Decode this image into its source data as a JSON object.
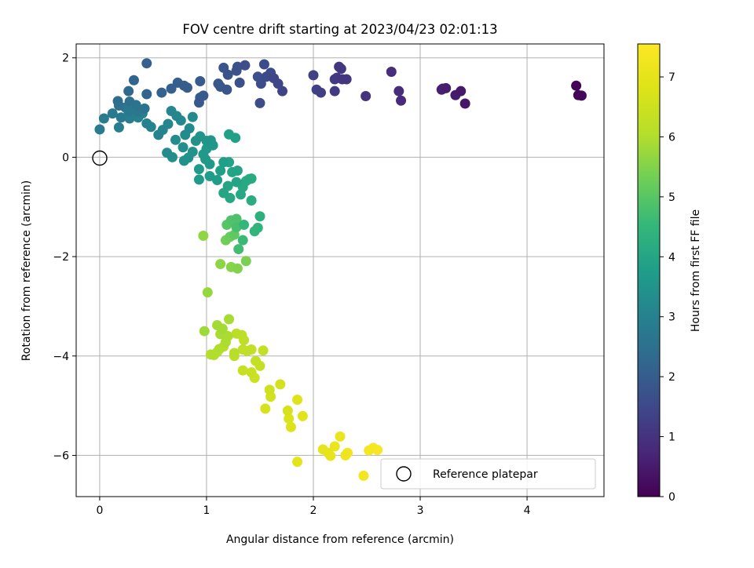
{
  "chart_data": {
    "type": "scatter",
    "title": "FOV centre drift starting at 2023/04/23 02:01:13",
    "xlabel": "Angular distance from reference (arcmin)",
    "ylabel": "Rotation from reference (arcmin)",
    "xlim": [
      -0.22,
      4.72
    ],
    "ylim": [
      -6.83,
      2.28
    ],
    "xticks": [
      0,
      1,
      2,
      3,
      4
    ],
    "yticks": [
      -6,
      -4,
      -2,
      0,
      2
    ],
    "grid": true,
    "legend": {
      "position": "lower right",
      "entries": [
        "Reference platepar"
      ]
    },
    "reference_point": {
      "x": 0,
      "y": 0,
      "label": "Reference platepar"
    },
    "colorbar": {
      "label": "Hours from first FF file",
      "colormap": "viridis",
      "range": [
        0,
        7.55
      ],
      "ticks": [
        0,
        1,
        2,
        3,
        4,
        5,
        6,
        7
      ]
    },
    "points": [
      {
        "x": 4.46,
        "y": 1.44,
        "t": 0.05
      },
      {
        "x": 4.48,
        "y": 1.25,
        "t": 0.1
      },
      {
        "x": 4.51,
        "y": 1.24,
        "t": 0.15
      },
      {
        "x": 3.42,
        "y": 1.08,
        "t": 0.4
      },
      {
        "x": 3.38,
        "y": 1.33,
        "t": 0.45
      },
      {
        "x": 3.33,
        "y": 1.25,
        "t": 0.5
      },
      {
        "x": 3.24,
        "y": 1.39,
        "t": 0.55
      },
      {
        "x": 3.2,
        "y": 1.36,
        "t": 0.6
      },
      {
        "x": 3.21,
        "y": 1.38,
        "t": 0.6
      },
      {
        "x": 2.82,
        "y": 1.14,
        "t": 0.8
      },
      {
        "x": 2.8,
        "y": 1.33,
        "t": 0.85
      },
      {
        "x": 2.73,
        "y": 1.72,
        "t": 0.9
      },
      {
        "x": 2.49,
        "y": 1.23,
        "t": 1.0
      },
      {
        "x": 2.31,
        "y": 1.57,
        "t": 1.05
      },
      {
        "x": 2.27,
        "y": 1.57,
        "t": 1.1
      },
      {
        "x": 2.24,
        "y": 1.82,
        "t": 1.1
      },
      {
        "x": 2.26,
        "y": 1.78,
        "t": 1.15
      },
      {
        "x": 2.22,
        "y": 1.6,
        "t": 1.15
      },
      {
        "x": 2.2,
        "y": 1.57,
        "t": 1.2
      },
      {
        "x": 2.2,
        "y": 1.33,
        "t": 1.2
      },
      {
        "x": 2.07,
        "y": 1.3,
        "t": 1.25
      },
      {
        "x": 2.03,
        "y": 1.36,
        "t": 1.3
      },
      {
        "x": 2.0,
        "y": 1.65,
        "t": 1.3
      },
      {
        "x": 1.71,
        "y": 1.33,
        "t": 1.4
      },
      {
        "x": 1.67,
        "y": 1.48,
        "t": 1.45
      },
      {
        "x": 1.63,
        "y": 1.59,
        "t": 1.45
      },
      {
        "x": 1.6,
        "y": 1.7,
        "t": 1.5
      },
      {
        "x": 1.56,
        "y": 1.62,
        "t": 1.55
      },
      {
        "x": 1.54,
        "y": 1.87,
        "t": 1.55
      },
      {
        "x": 1.51,
        "y": 1.48,
        "t": 1.6
      },
      {
        "x": 1.5,
        "y": 1.09,
        "t": 1.6
      },
      {
        "x": 1.48,
        "y": 1.62,
        "t": 1.65
      },
      {
        "x": 1.36,
        "y": 1.85,
        "t": 1.65
      },
      {
        "x": 1.31,
        "y": 1.5,
        "t": 1.7
      },
      {
        "x": 1.29,
        "y": 1.82,
        "t": 1.7
      },
      {
        "x": 1.28,
        "y": 1.74,
        "t": 1.75
      },
      {
        "x": 1.2,
        "y": 1.66,
        "t": 1.75
      },
      {
        "x": 1.19,
        "y": 1.36,
        "t": 1.8
      },
      {
        "x": 1.16,
        "y": 1.8,
        "t": 1.8
      },
      {
        "x": 1.11,
        "y": 1.48,
        "t": 1.85
      },
      {
        "x": 1.13,
        "y": 1.42,
        "t": 1.85
      },
      {
        "x": 0.97,
        "y": 1.24,
        "t": 1.9
      },
      {
        "x": 0.93,
        "y": 1.1,
        "t": 1.9
      },
      {
        "x": 0.94,
        "y": 1.2,
        "t": 1.95
      },
      {
        "x": 0.94,
        "y": 1.53,
        "t": 1.95
      },
      {
        "x": 0.82,
        "y": 1.4,
        "t": 2.0
      },
      {
        "x": 0.79,
        "y": 1.44,
        "t": 2.0
      },
      {
        "x": 0.73,
        "y": 1.5,
        "t": 2.05
      },
      {
        "x": 0.67,
        "y": 1.38,
        "t": 2.05
      },
      {
        "x": 0.58,
        "y": 1.3,
        "t": 2.1
      },
      {
        "x": 0.44,
        "y": 1.89,
        "t": 2.1
      },
      {
        "x": 0.44,
        "y": 1.27,
        "t": 2.2
      },
      {
        "x": 0.32,
        "y": 1.55,
        "t": 2.2
      },
      {
        "x": 0.27,
        "y": 1.33,
        "t": 2.3
      },
      {
        "x": 0.17,
        "y": 1.13,
        "t": 2.4
      },
      {
        "x": 0.18,
        "y": 1.04,
        "t": 2.5
      },
      {
        "x": 0.28,
        "y": 1.12,
        "t": 2.5
      },
      {
        "x": 0.34,
        "y": 1.05,
        "t": 2.6
      },
      {
        "x": 0.42,
        "y": 0.98,
        "t": 2.6
      },
      {
        "x": 0.36,
        "y": 0.92,
        "t": 2.7
      },
      {
        "x": 0.27,
        "y": 0.93,
        "t": 2.7
      },
      {
        "x": 0.24,
        "y": 1.0,
        "t": 2.75
      },
      {
        "x": 0.2,
        "y": 0.8,
        "t": 2.8
      },
      {
        "x": 0.12,
        "y": 0.88,
        "t": 2.8
      },
      {
        "x": 0.04,
        "y": 0.78,
        "t": 2.85
      },
      {
        "x": 0.0,
        "y": 0.56,
        "t": 2.85
      },
      {
        "x": 0.18,
        "y": 0.6,
        "t": 2.9
      },
      {
        "x": 0.28,
        "y": 0.78,
        "t": 2.9
      },
      {
        "x": 0.32,
        "y": 0.85,
        "t": 2.95
      },
      {
        "x": 0.36,
        "y": 0.8,
        "t": 2.95
      },
      {
        "x": 0.4,
        "y": 0.88,
        "t": 3.0
      },
      {
        "x": 0.44,
        "y": 0.68,
        "t": 3.0
      },
      {
        "x": 0.48,
        "y": 0.61,
        "t": 3.05
      },
      {
        "x": 0.55,
        "y": 0.45,
        "t": 3.05
      },
      {
        "x": 0.59,
        "y": 0.55,
        "t": 3.1
      },
      {
        "x": 0.64,
        "y": 0.67,
        "t": 3.1
      },
      {
        "x": 0.67,
        "y": 0.93,
        "t": 3.15
      },
      {
        "x": 0.72,
        "y": 0.83,
        "t": 3.15
      },
      {
        "x": 0.76,
        "y": 0.74,
        "t": 3.2
      },
      {
        "x": 0.84,
        "y": 0.58,
        "t": 3.2
      },
      {
        "x": 0.87,
        "y": 0.81,
        "t": 3.25
      },
      {
        "x": 0.8,
        "y": 0.45,
        "t": 3.25
      },
      {
        "x": 0.71,
        "y": 0.35,
        "t": 3.3
      },
      {
        "x": 0.63,
        "y": 0.09,
        "t": 3.3
      },
      {
        "x": 0.68,
        "y": 0.0,
        "t": 3.35
      },
      {
        "x": 0.78,
        "y": 0.2,
        "t": 3.35
      },
      {
        "x": 0.79,
        "y": -0.07,
        "t": 3.4
      },
      {
        "x": 0.83,
        "y": -0.01,
        "t": 3.4
      },
      {
        "x": 0.87,
        "y": 0.11,
        "t": 3.45
      },
      {
        "x": 0.9,
        "y": 0.33,
        "t": 3.45
      },
      {
        "x": 0.94,
        "y": 0.42,
        "t": 3.5
      },
      {
        "x": 1.0,
        "y": 0.33,
        "t": 3.5
      },
      {
        "x": 1.04,
        "y": 0.34,
        "t": 3.55
      },
      {
        "x": 1.06,
        "y": 0.24,
        "t": 3.55
      },
      {
        "x": 1.0,
        "y": 0.17,
        "t": 3.6
      },
      {
        "x": 0.97,
        "y": 0.06,
        "t": 3.6
      },
      {
        "x": 0.99,
        "y": -0.04,
        "t": 3.65
      },
      {
        "x": 1.03,
        "y": -0.14,
        "t": 3.65
      },
      {
        "x": 0.93,
        "y": -0.24,
        "t": 3.7
      },
      {
        "x": 0.93,
        "y": -0.45,
        "t": 3.7
      },
      {
        "x": 1.03,
        "y": -0.38,
        "t": 3.75
      },
      {
        "x": 1.1,
        "y": -0.46,
        "t": 3.75
      },
      {
        "x": 1.13,
        "y": -0.27,
        "t": 3.8
      },
      {
        "x": 1.16,
        "y": -0.1,
        "t": 3.8
      },
      {
        "x": 1.21,
        "y": 0.46,
        "t": 3.85
      },
      {
        "x": 1.27,
        "y": 0.39,
        "t": 3.85
      },
      {
        "x": 1.21,
        "y": -0.1,
        "t": 3.9
      },
      {
        "x": 1.24,
        "y": -0.3,
        "t": 3.9
      },
      {
        "x": 1.29,
        "y": -0.27,
        "t": 3.95
      },
      {
        "x": 1.28,
        "y": -0.5,
        "t": 3.95
      },
      {
        "x": 1.2,
        "y": -0.58,
        "t": 4.0
      },
      {
        "x": 1.16,
        "y": -0.72,
        "t": 4.0
      },
      {
        "x": 1.22,
        "y": -0.82,
        "t": 4.05
      },
      {
        "x": 1.32,
        "y": -0.75,
        "t": 4.05
      },
      {
        "x": 1.34,
        "y": -0.6,
        "t": 4.1
      },
      {
        "x": 1.37,
        "y": -0.48,
        "t": 4.1
      },
      {
        "x": 1.4,
        "y": -0.44,
        "t": 4.15
      },
      {
        "x": 1.42,
        "y": -0.43,
        "t": 4.15
      },
      {
        "x": 1.42,
        "y": -0.87,
        "t": 4.2
      },
      {
        "x": 1.5,
        "y": -1.19,
        "t": 4.3
      },
      {
        "x": 1.48,
        "y": -1.42,
        "t": 4.4
      },
      {
        "x": 1.45,
        "y": -1.49,
        "t": 4.45
      },
      {
        "x": 1.35,
        "y": -1.36,
        "t": 4.5
      },
      {
        "x": 1.34,
        "y": -1.67,
        "t": 4.6
      },
      {
        "x": 1.3,
        "y": -1.85,
        "t": 4.7
      },
      {
        "x": 1.28,
        "y": -1.41,
        "t": 4.8
      },
      {
        "x": 1.28,
        "y": -1.24,
        "t": 4.85
      },
      {
        "x": 1.23,
        "y": -1.27,
        "t": 4.9
      },
      {
        "x": 1.19,
        "y": -1.36,
        "t": 5.0
      },
      {
        "x": 1.26,
        "y": -1.56,
        "t": 5.1
      },
      {
        "x": 1.22,
        "y": -1.6,
        "t": 5.2
      },
      {
        "x": 1.18,
        "y": -1.67,
        "t": 5.3
      },
      {
        "x": 1.37,
        "y": -2.09,
        "t": 5.4
      },
      {
        "x": 1.29,
        "y": -2.24,
        "t": 5.5
      },
      {
        "x": 1.23,
        "y": -2.21,
        "t": 5.55
      },
      {
        "x": 1.13,
        "y": -2.15,
        "t": 5.6
      },
      {
        "x": 0.97,
        "y": -1.58,
        "t": 5.65
      },
      {
        "x": 1.01,
        "y": -2.72,
        "t": 5.7
      },
      {
        "x": 0.98,
        "y": -3.5,
        "t": 5.8
      },
      {
        "x": 1.1,
        "y": -3.38,
        "t": 5.85
      },
      {
        "x": 1.15,
        "y": -3.45,
        "t": 5.85
      },
      {
        "x": 1.21,
        "y": -3.26,
        "t": 5.9
      },
      {
        "x": 1.13,
        "y": -3.56,
        "t": 5.9
      },
      {
        "x": 1.2,
        "y": -3.6,
        "t": 5.95
      },
      {
        "x": 1.18,
        "y": -3.72,
        "t": 5.95
      },
      {
        "x": 1.12,
        "y": -3.86,
        "t": 6.0
      },
      {
        "x": 1.07,
        "y": -3.98,
        "t": 6.0
      },
      {
        "x": 1.04,
        "y": -3.97,
        "t": 6.05
      },
      {
        "x": 1.1,
        "y": -3.92,
        "t": 6.05
      },
      {
        "x": 1.16,
        "y": -3.81,
        "t": 6.1
      },
      {
        "x": 1.26,
        "y": -3.94,
        "t": 6.1
      },
      {
        "x": 1.26,
        "y": -4.0,
        "t": 6.15
      },
      {
        "x": 1.28,
        "y": -3.55,
        "t": 6.15
      },
      {
        "x": 1.33,
        "y": -3.58,
        "t": 6.2
      },
      {
        "x": 1.35,
        "y": -3.68,
        "t": 6.2
      },
      {
        "x": 1.34,
        "y": -3.87,
        "t": 6.25
      },
      {
        "x": 1.38,
        "y": -3.9,
        "t": 6.25
      },
      {
        "x": 1.42,
        "y": -3.87,
        "t": 6.3
      },
      {
        "x": 1.46,
        "y": -4.1,
        "t": 6.3
      },
      {
        "x": 1.5,
        "y": -4.2,
        "t": 6.35
      },
      {
        "x": 1.53,
        "y": -3.89,
        "t": 6.35
      },
      {
        "x": 1.34,
        "y": -4.29,
        "t": 6.4
      },
      {
        "x": 1.42,
        "y": -4.33,
        "t": 6.4
      },
      {
        "x": 1.45,
        "y": -4.44,
        "t": 6.45
      },
      {
        "x": 1.59,
        "y": -4.68,
        "t": 6.5
      },
      {
        "x": 1.6,
        "y": -4.82,
        "t": 6.55
      },
      {
        "x": 1.69,
        "y": -4.57,
        "t": 6.6
      },
      {
        "x": 1.55,
        "y": -5.06,
        "t": 6.65
      },
      {
        "x": 1.76,
        "y": -5.1,
        "t": 6.7
      },
      {
        "x": 1.77,
        "y": -5.26,
        "t": 6.75
      },
      {
        "x": 1.79,
        "y": -5.43,
        "t": 6.8
      },
      {
        "x": 1.85,
        "y": -4.88,
        "t": 6.85
      },
      {
        "x": 1.9,
        "y": -5.21,
        "t": 6.9
      },
      {
        "x": 1.85,
        "y": -6.13,
        "t": 6.95
      },
      {
        "x": 2.09,
        "y": -5.88,
        "t": 7.0
      },
      {
        "x": 2.14,
        "y": -5.95,
        "t": 7.05
      },
      {
        "x": 2.16,
        "y": -6.01,
        "t": 7.05
      },
      {
        "x": 2.2,
        "y": -5.82,
        "t": 7.1
      },
      {
        "x": 2.25,
        "y": -5.62,
        "t": 7.15
      },
      {
        "x": 2.3,
        "y": -6.0,
        "t": 7.2
      },
      {
        "x": 2.32,
        "y": -5.95,
        "t": 7.25
      },
      {
        "x": 2.47,
        "y": -6.41,
        "t": 7.3
      },
      {
        "x": 2.52,
        "y": -5.9,
        "t": 7.35
      },
      {
        "x": 2.56,
        "y": -5.85,
        "t": 7.4
      },
      {
        "x": 2.6,
        "y": -5.89,
        "t": 7.45
      }
    ]
  }
}
